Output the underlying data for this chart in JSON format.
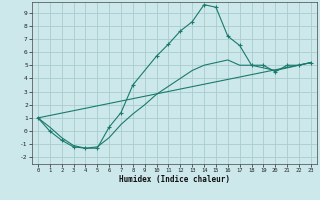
{
  "xlabel": "Humidex (Indice chaleur)",
  "bg_color": "#cce8ea",
  "grid_color": "#aacccc",
  "line_color": "#1a7a6e",
  "xlim": [
    -0.5,
    23.5
  ],
  "ylim": [
    -2.5,
    9.8
  ],
  "xticks": [
    0,
    1,
    2,
    3,
    4,
    5,
    6,
    7,
    8,
    9,
    10,
    11,
    12,
    13,
    14,
    15,
    16,
    17,
    18,
    19,
    20,
    21,
    22,
    23
  ],
  "yticks": [
    -2,
    -1,
    0,
    1,
    2,
    3,
    4,
    5,
    6,
    7,
    8,
    9
  ],
  "curve1_x": [
    0,
    1,
    2,
    3,
    4,
    5,
    6,
    7,
    8,
    10,
    11,
    12,
    13,
    14,
    15,
    16,
    17,
    18,
    19,
    20,
    21,
    22,
    23
  ],
  "curve1_y": [
    1.0,
    0.0,
    -0.7,
    -1.2,
    -1.3,
    -1.3,
    0.3,
    1.4,
    3.5,
    5.7,
    6.6,
    7.6,
    8.3,
    9.6,
    9.4,
    7.2,
    6.5,
    5.0,
    5.0,
    4.5,
    5.0,
    5.0,
    5.2
  ],
  "curve2_x": [
    0,
    1,
    2,
    3,
    4,
    5,
    6,
    7,
    8,
    9,
    10,
    11,
    12,
    13,
    14,
    15,
    16,
    17,
    18,
    19,
    20,
    21,
    22,
    23
  ],
  "curve2_y": [
    1.0,
    0.3,
    -0.5,
    -1.1,
    -1.3,
    -1.2,
    -0.5,
    0.5,
    1.3,
    2.0,
    2.8,
    3.4,
    4.0,
    4.6,
    5.0,
    5.2,
    5.4,
    5.0,
    5.0,
    4.8,
    4.6,
    4.8,
    5.0,
    5.2
  ],
  "curve3_x": [
    0,
    23
  ],
  "curve3_y": [
    1.0,
    5.2
  ]
}
